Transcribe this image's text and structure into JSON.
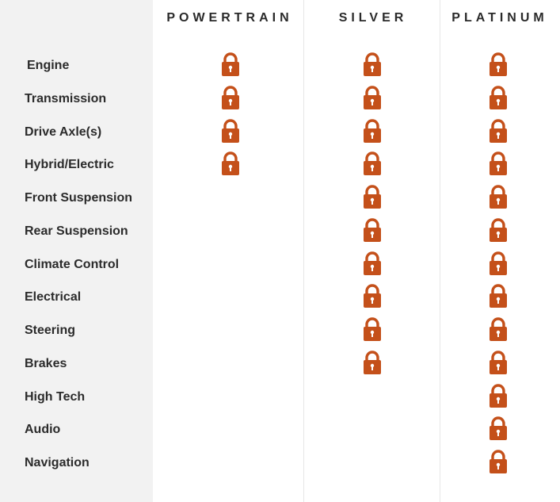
{
  "plans": [
    {
      "name": "POWERTRAIN"
    },
    {
      "name": "SILVER"
    },
    {
      "name": "PLATINUM"
    }
  ],
  "lock_color": "#c4501a",
  "lock_icon": "lock-icon",
  "features": [
    {
      "label": "Engine",
      "covered": [
        true,
        true,
        true
      ]
    },
    {
      "label": "Transmission",
      "covered": [
        true,
        true,
        true
      ]
    },
    {
      "label": "Drive Axle(s)",
      "covered": [
        true,
        true,
        true
      ]
    },
    {
      "label": "Hybrid/Electric",
      "covered": [
        true,
        true,
        true
      ]
    },
    {
      "label": "Front Suspension",
      "covered": [
        false,
        true,
        true
      ]
    },
    {
      "label": "Rear Suspension",
      "covered": [
        false,
        true,
        true
      ]
    },
    {
      "label": "Climate Control",
      "covered": [
        false,
        true,
        true
      ]
    },
    {
      "label": "Electrical",
      "covered": [
        false,
        true,
        true
      ]
    },
    {
      "label": "Steering",
      "covered": [
        false,
        true,
        true
      ]
    },
    {
      "label": "Brakes",
      "covered": [
        false,
        true,
        true
      ]
    },
    {
      "label": "High Tech",
      "covered": [
        false,
        false,
        true
      ]
    },
    {
      "label": "Audio",
      "covered": [
        false,
        false,
        true
      ]
    },
    {
      "label": "Navigation",
      "covered": [
        false,
        false,
        true
      ]
    }
  ]
}
